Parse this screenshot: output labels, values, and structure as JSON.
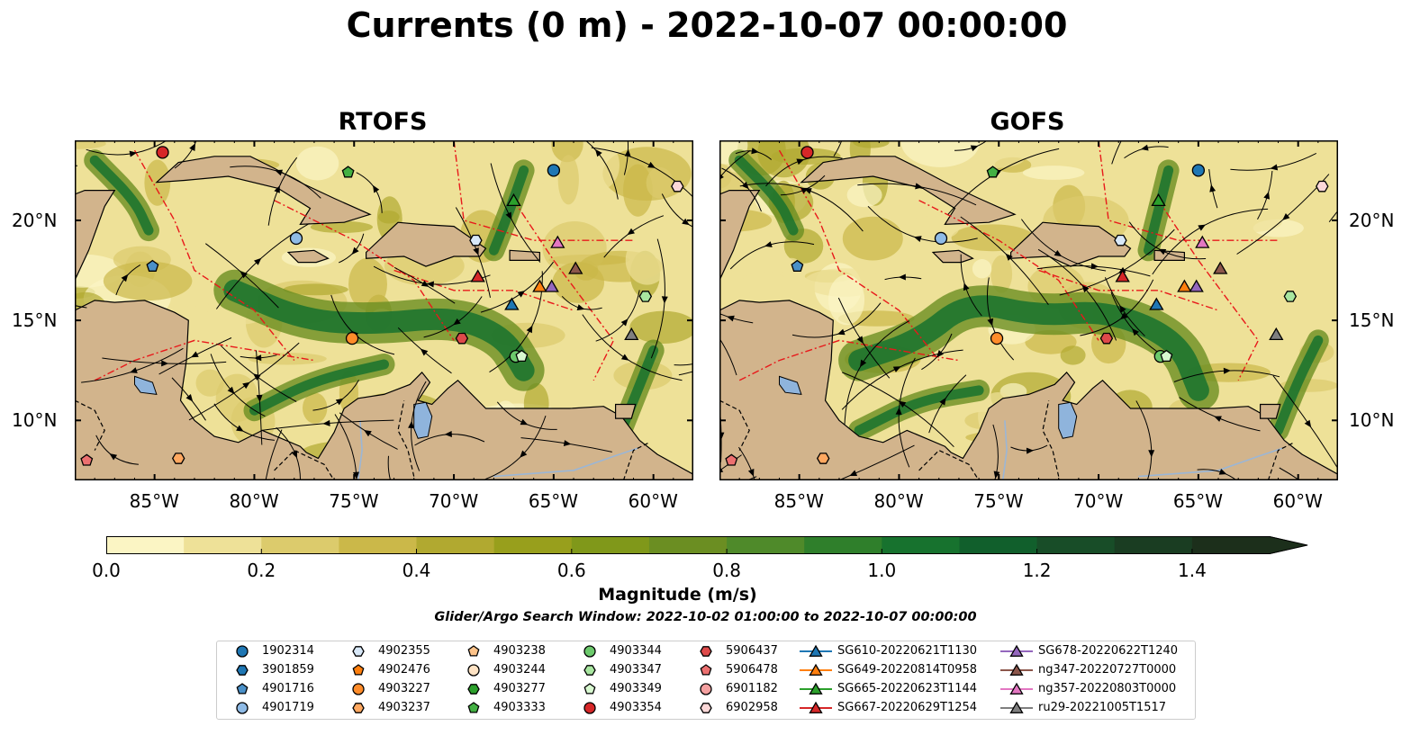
{
  "title": "Currents (0 m) - 2022-10-07 00:00:00",
  "panels": [
    {
      "title": "RTOFS"
    },
    {
      "title": "GOFS"
    }
  ],
  "axes": {
    "x_ticks": [
      "85°W",
      "80°W",
      "75°W",
      "70°W",
      "65°W",
      "60°W"
    ],
    "y_ticks": [
      "20°N",
      "15°N",
      "10°N"
    ],
    "lon_range": [
      -89,
      -58
    ],
    "lat_range": [
      7,
      24
    ]
  },
  "colorbar": {
    "label": "Magnitude (m/s)",
    "ticks": [
      "0.0",
      "0.2",
      "0.4",
      "0.6",
      "0.8",
      "1.0",
      "1.2",
      "1.4"
    ],
    "range": [
      0,
      1.5
    ],
    "colors": [
      "#fbf5c4",
      "#eee198",
      "#dccb6c",
      "#cbb849",
      "#b1a930",
      "#989f1c",
      "#80981a",
      "#6b8e22",
      "#4f8a2a",
      "#2f7f2b",
      "#17722e",
      "#115f2c",
      "#184d28",
      "#1a3d22",
      "#1c2f1b"
    ]
  },
  "search_window": "Glider/Argo Search Window: 2022-10-02 01:00:00 to 2022-10-07 00:00:00",
  "legend": [
    {
      "label": "1902314",
      "marker": "circle",
      "color": "#1f77b4"
    },
    {
      "label": "3901859",
      "marker": "hexagon",
      "color": "#1f77b4"
    },
    {
      "label": "4901716",
      "marker": "pentagon",
      "color": "#4a90c8"
    },
    {
      "label": "4901719",
      "marker": "circle",
      "color": "#8fbbe6"
    },
    {
      "label": "4902355",
      "marker": "hexagon",
      "color": "#d8e8f8"
    },
    {
      "label": "4902476",
      "marker": "pentagon",
      "color": "#ff7f0e"
    },
    {
      "label": "4903227",
      "marker": "circle",
      "color": "#ff8c2a"
    },
    {
      "label": "4903237",
      "marker": "hexagon",
      "color": "#ffa860"
    },
    {
      "label": "4903238",
      "marker": "pentagon",
      "color": "#ffc48a"
    },
    {
      "label": "4903244",
      "marker": "circle",
      "color": "#ffe3c4"
    },
    {
      "label": "4903277",
      "marker": "hexagon",
      "color": "#2ca02c"
    },
    {
      "label": "4903333",
      "marker": "pentagon",
      "color": "#43b043"
    },
    {
      "label": "4903344",
      "marker": "circle",
      "color": "#6cc96c"
    },
    {
      "label": "4903347",
      "marker": "hexagon",
      "color": "#a8e6a0"
    },
    {
      "label": "4903349",
      "marker": "pentagon",
      "color": "#d8f8d0"
    },
    {
      "label": "4903354",
      "marker": "circle",
      "color": "#d62728"
    },
    {
      "label": "5906437",
      "marker": "hexagon",
      "color": "#de4a4a"
    },
    {
      "label": "5906478",
      "marker": "pentagon",
      "color": "#ec7070"
    },
    {
      "label": "6901182",
      "marker": "circle",
      "color": "#f4a0a0"
    },
    {
      "label": "6902958",
      "marker": "hexagon",
      "color": "#fcd8d8"
    },
    {
      "label": "SG610-20220621T1130",
      "marker": "triangle",
      "color": "#1f77b4"
    },
    {
      "label": "SG649-20220814T0958",
      "marker": "triangle",
      "color": "#ff7f0e"
    },
    {
      "label": "SG665-20220623T1144",
      "marker": "triangle",
      "color": "#2ca02c"
    },
    {
      "label": "SG667-20220629T1254",
      "marker": "triangle",
      "color": "#d62728"
    },
    {
      "label": "SG678-20220622T1240",
      "marker": "triangle",
      "color": "#9467bd"
    },
    {
      "label": "ng347-20220727T0000",
      "marker": "triangle",
      "color": "#8c564b"
    },
    {
      "label": "ng357-20220803T0000",
      "marker": "triangle",
      "color": "#e377c2"
    },
    {
      "label": "ru29-20221005T1517",
      "marker": "triangle",
      "color": "#7f7f7f"
    }
  ],
  "markers": [
    {
      "id": "4903354",
      "lon": -84.6,
      "lat": 23.4
    },
    {
      "id": "4903333",
      "lon": -75.3,
      "lat": 22.4
    },
    {
      "id": "1902314",
      "lon": -65.0,
      "lat": 22.5
    },
    {
      "id": "6902958",
      "lon": -58.8,
      "lat": 21.7
    },
    {
      "id": "SG665-20220623T1144",
      "lon": -67.0,
      "lat": 21.0
    },
    {
      "id": "4901719",
      "lon": -77.9,
      "lat": 19.1
    },
    {
      "id": "4902355",
      "lon": -68.9,
      "lat": 19.0
    },
    {
      "id": "ng357-20220803T0000",
      "lon": -64.8,
      "lat": 18.9
    },
    {
      "id": "4901716",
      "lon": -85.1,
      "lat": 17.7
    },
    {
      "id": "ng347-20220727T0000",
      "lon": -63.9,
      "lat": 17.6
    },
    {
      "id": "SG667-20220629T1254",
      "lon": -68.8,
      "lat": 17.2
    },
    {
      "id": "SG649-20220814T0958",
      "lon": -65.7,
      "lat": 16.7
    },
    {
      "id": "SG678-20220622T1240",
      "lon": -65.1,
      "lat": 16.7
    },
    {
      "id": "4903347",
      "lon": -60.4,
      "lat": 16.2
    },
    {
      "id": "SG610-20220621T1130",
      "lon": -67.1,
      "lat": 15.8
    },
    {
      "id": "ru29-20221005T1517",
      "lon": -61.1,
      "lat": 14.3
    },
    {
      "id": "4903227",
      "lon": -75.1,
      "lat": 14.1
    },
    {
      "id": "5906437",
      "lon": -69.6,
      "lat": 14.1
    },
    {
      "id": "4903344",
      "lon": -66.9,
      "lat": 13.2
    },
    {
      "id": "4903349",
      "lon": -66.6,
      "lat": 13.2
    },
    {
      "id": "5906478",
      "lon": -88.4,
      "lat": 8.0
    },
    {
      "id": "4903237",
      "lon": -83.8,
      "lat": 8.1
    }
  ]
}
